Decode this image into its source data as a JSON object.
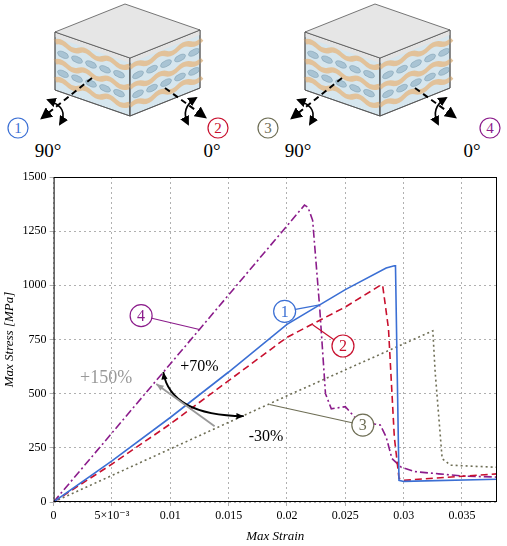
{
  "chart_data": {
    "type": "line",
    "x_label": "Max Strain",
    "y_label": "Max Stress [MPa]",
    "xlim": [
      0,
      0.038
    ],
    "xticks": [
      0,
      {
        "value": 0.005,
        "label": "5×10⁻³"
      },
      0.01,
      0.015,
      0.02,
      0.025,
      0.03,
      0.035
    ],
    "ylim": [
      0,
      1500
    ],
    "yticks": [
      0,
      250,
      500,
      750,
      1000,
      1250,
      1500
    ],
    "grid": true,
    "series": [
      {
        "name": "1",
        "color": "#3b6fd4",
        "line_style": "solid",
        "x": [
          0,
          0.005,
          0.01,
          0.015,
          0.02,
          0.025,
          0.0285,
          0.0292,
          0.0293,
          0.0296,
          0.03,
          0.038
        ],
        "values": [
          0,
          190,
          390,
          600,
          820,
          980,
          1080,
          1090,
          1090,
          100,
          95,
          105
        ]
      },
      {
        "name": "2",
        "color": "#c8102e",
        "line_style": "dashed",
        "x": [
          0,
          0.005,
          0.01,
          0.015,
          0.02,
          0.025,
          0.028,
          0.0282,
          0.0287,
          0.0292,
          0.0296,
          0.03,
          0.038
        ],
        "values": [
          0,
          175,
          360,
          560,
          760,
          900,
          1000,
          1000,
          800,
          300,
          110,
          100,
          130
        ]
      },
      {
        "name": "3",
        "color": "#6e6e55",
        "line_style": "dotted",
        "x": [
          0,
          0.01,
          0.02,
          0.0325,
          0.0327,
          0.0333,
          0.034,
          0.038
        ],
        "values": [
          0,
          245,
          490,
          790,
          600,
          200,
          170,
          160
        ]
      },
      {
        "name": "4",
        "color": "#8b1c8b",
        "line_style": "dashdot",
        "x": [
          0,
          0.0215,
          0.0218,
          0.0222,
          0.0228,
          0.0233,
          0.0238,
          0.025,
          0.0255,
          0.026,
          0.0268,
          0.0275,
          0.028,
          0.0285,
          0.029,
          0.0298,
          0.031,
          0.033,
          0.035,
          0.038
        ],
        "values": [
          0,
          1370,
          1360,
          1300,
          900,
          500,
          430,
          440,
          410,
          380,
          370,
          360,
          355,
          300,
          200,
          160,
          140,
          130,
          120,
          115
        ]
      }
    ],
    "annotations": [
      "+70%",
      "-30%",
      "+150%"
    ]
  },
  "figure": {
    "panels": [
      {
        "labels": [
          {
            "number": "1",
            "angle": "90°"
          },
          {
            "number": "2",
            "angle": "0°"
          }
        ]
      },
      {
        "labels": [
          {
            "number": "3",
            "angle": "90°"
          },
          {
            "number": "4",
            "angle": "0°"
          }
        ]
      }
    ]
  }
}
